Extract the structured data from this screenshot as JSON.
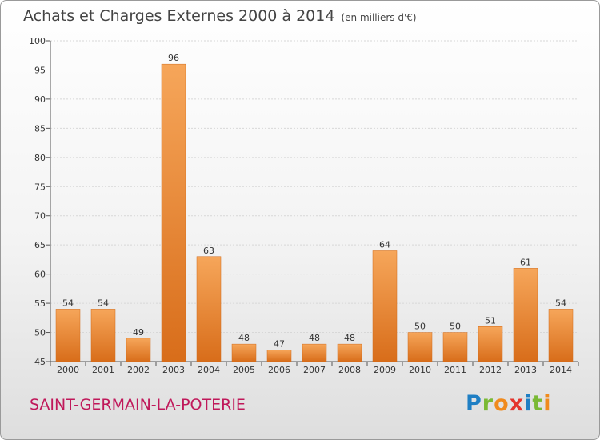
{
  "header": {
    "title": "Achats et Charges Externes 2000 à 2014",
    "subtitle": "(en milliers d'€)"
  },
  "footer": {
    "commune": "SAINT-GERMAIN-LA-POTERIE",
    "logo_letters": [
      "P",
      "r",
      "o",
      "x",
      "i",
      "t",
      "i"
    ],
    "logo_colors": [
      "#1f7fc4",
      "#7ab934",
      "#f08a1c",
      "#e4342c",
      "#1f7fc4",
      "#7ab934",
      "#f08a1c"
    ]
  },
  "chart_data": {
    "type": "bar",
    "title": "Achats et Charges Externes 2000 à 2014",
    "subtitle": "(en milliers d'€)",
    "categories": [
      "2000",
      "2001",
      "2002",
      "2003",
      "2004",
      "2005",
      "2006",
      "2007",
      "2008",
      "2009",
      "2010",
      "2011",
      "2012",
      "2013",
      "2014"
    ],
    "values": [
      54,
      54,
      49,
      96,
      63,
      48,
      47,
      48,
      48,
      64,
      50,
      50,
      51,
      61,
      54
    ],
    "ylim": [
      45,
      100
    ],
    "yticks": [
      45,
      50,
      55,
      60,
      65,
      70,
      75,
      80,
      85,
      90,
      95,
      100
    ],
    "grid": true,
    "bar_color": "#f0893a",
    "bar_color_light": "#f6a65a",
    "bar_color_dark": "#d86d1a"
  }
}
